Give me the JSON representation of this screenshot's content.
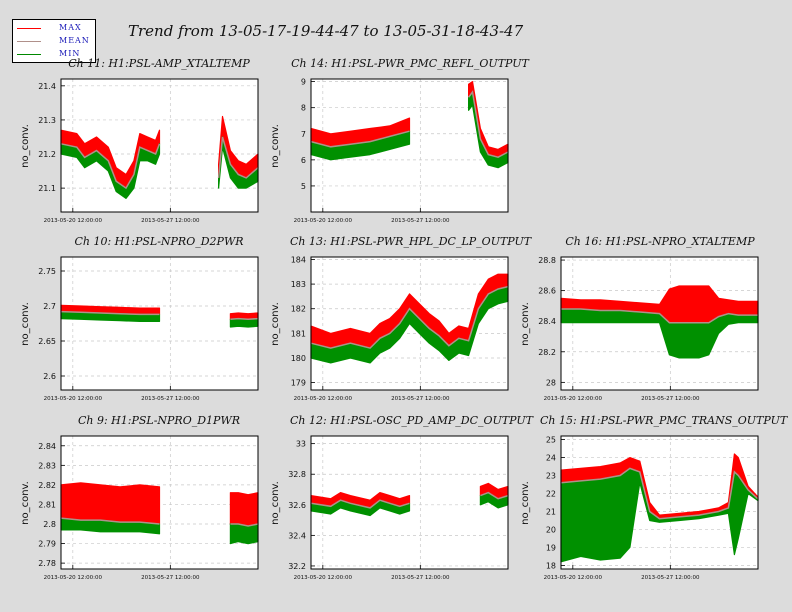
{
  "title": "Trend from 13-05-17-19-44-47 to 13-05-31-18-43-47",
  "legend": [
    {
      "label": "MAX",
      "color": "#ff0000"
    },
    {
      "label": "MEAN",
      "color": "#b0908a"
    },
    {
      "label": "MIN",
      "color": "#008800"
    }
  ],
  "x_ticks": [
    "2013-05-20 12:00:00",
    "2013-05-27 12:00:00"
  ],
  "chart_data": [
    {
      "type": "area",
      "title": "Ch 11: H1:PSL-AMP_XTALTEMP",
      "ylabel": "no_conv.",
      "yticks": [
        "21.1",
        "21.2",
        "21.3",
        "21.4"
      ],
      "ylim": [
        21.03,
        21.42
      ],
      "x": [
        0,
        0.08,
        0.12,
        0.18,
        0.24,
        0.28,
        0.33,
        0.37,
        0.4,
        0.44,
        0.48,
        0.5,
        0.51,
        0.52,
        0.8,
        0.82,
        0.86,
        0.9,
        0.94,
        1
      ],
      "max": [
        21.27,
        21.26,
        21.23,
        21.25,
        21.22,
        21.16,
        21.14,
        21.18,
        21.26,
        21.25,
        21.24,
        21.27,
        null,
        null,
        21.17,
        21.31,
        21.21,
        21.18,
        21.17,
        21.2
      ],
      "mean": [
        21.23,
        21.22,
        21.19,
        21.21,
        21.18,
        21.12,
        21.1,
        21.14,
        21.22,
        21.21,
        21.2,
        21.23,
        null,
        null,
        21.13,
        21.25,
        21.17,
        21.14,
        21.13,
        21.16
      ],
      "min": [
        21.2,
        21.19,
        21.16,
        21.18,
        21.15,
        21.09,
        21.07,
        21.1,
        21.18,
        21.18,
        21.17,
        21.2,
        null,
        null,
        21.1,
        21.22,
        21.13,
        21.1,
        21.1,
        21.12
      ]
    },
    {
      "type": "area",
      "title": "Ch 14: H1:PSL-PWR_PMC_REFL_OUTPUT",
      "ylabel": "no_conv.",
      "yticks": [
        "5",
        "6",
        "7",
        "8",
        "9"
      ],
      "ylim": [
        4.0,
        9.1
      ],
      "x": [
        0,
        0.1,
        0.2,
        0.3,
        0.4,
        0.5,
        0.52,
        0.53,
        0.8,
        0.82,
        0.86,
        0.9,
        0.95,
        1
      ],
      "max": [
        7.2,
        7.0,
        7.1,
        7.2,
        7.3,
        7.6,
        null,
        null,
        8.9,
        9.0,
        7.2,
        6.5,
        6.4,
        6.6
      ],
      "mean": [
        6.7,
        6.5,
        6.6,
        6.7,
        6.9,
        7.1,
        null,
        null,
        8.4,
        8.6,
        6.8,
        6.2,
        6.1,
        6.3
      ],
      "min": [
        6.2,
        6.0,
        6.1,
        6.2,
        6.4,
        6.6,
        null,
        null,
        7.9,
        8.1,
        6.3,
        5.8,
        5.7,
        5.9
      ]
    },
    {
      "type": "area",
      "title": "Ch 10: H1:PSL-NPRO_D2PWR",
      "ylabel": "no_conv.",
      "yticks": [
        "2.6",
        "2.65",
        "2.7",
        "2.75"
      ],
      "ylim": [
        2.58,
        2.77
      ],
      "x": [
        0,
        0.1,
        0.2,
        0.3,
        0.4,
        0.5,
        0.51,
        0.85,
        0.86,
        0.9,
        0.95,
        1
      ],
      "max": [
        2.701,
        2.7,
        2.699,
        2.698,
        2.697,
        2.697,
        null,
        null,
        2.689,
        2.69,
        2.689,
        2.69
      ],
      "mean": [
        2.692,
        2.691,
        2.69,
        2.689,
        2.688,
        2.688,
        null,
        null,
        2.681,
        2.682,
        2.681,
        2.682
      ],
      "min": [
        2.682,
        2.681,
        2.68,
        2.679,
        2.678,
        2.678,
        null,
        null,
        2.67,
        2.671,
        2.67,
        2.671
      ]
    },
    {
      "type": "area",
      "title": "Ch 13: H1:PSL-PWR_HPL_DC_LP_OUTPUT",
      "ylabel": "no_conv.",
      "yticks": [
        "179",
        "180",
        "181",
        "182",
        "183",
        "184"
      ],
      "ylim": [
        178.7,
        184.1
      ],
      "x": [
        0,
        0.1,
        0.2,
        0.3,
        0.35,
        0.4,
        0.45,
        0.5,
        0.55,
        0.6,
        0.65,
        0.7,
        0.75,
        0.8,
        0.85,
        0.9,
        0.95,
        1
      ],
      "max": [
        181.3,
        181.0,
        181.2,
        181.0,
        181.4,
        181.6,
        182.0,
        182.6,
        182.2,
        181.8,
        181.5,
        181.0,
        181.3,
        181.2,
        182.6,
        183.2,
        183.4,
        183.4
      ],
      "mean": [
        180.6,
        180.4,
        180.6,
        180.4,
        180.8,
        181.0,
        181.4,
        182.0,
        181.6,
        181.2,
        180.9,
        180.5,
        180.8,
        180.7,
        182.0,
        182.6,
        182.8,
        182.9
      ],
      "min": [
        180.0,
        179.8,
        180.0,
        179.8,
        180.2,
        180.4,
        180.8,
        181.4,
        181.0,
        180.6,
        180.3,
        179.9,
        180.2,
        180.1,
        181.4,
        182.0,
        182.2,
        182.3
      ]
    },
    {
      "type": "area",
      "title": "Ch 16: H1:PSL-NPRO_XTALTEMP",
      "ylabel": "no_conv.",
      "yticks": [
        "28",
        "28.2",
        "28.4",
        "28.6",
        "28.8"
      ],
      "ylim": [
        27.95,
        28.82
      ],
      "x": [
        0,
        0.1,
        0.2,
        0.3,
        0.4,
        0.5,
        0.55,
        0.6,
        0.7,
        0.75,
        0.8,
        0.85,
        0.9,
        1
      ],
      "max": [
        28.55,
        28.54,
        28.54,
        28.53,
        28.52,
        28.51,
        28.61,
        28.63,
        28.63,
        28.63,
        28.55,
        28.54,
        28.53,
        28.53
      ],
      "mean": [
        28.48,
        28.48,
        28.47,
        28.47,
        28.46,
        28.45,
        28.39,
        28.39,
        28.39,
        28.39,
        28.43,
        28.45,
        28.44,
        28.44
      ],
      "min": [
        28.39,
        28.39,
        28.39,
        28.39,
        28.39,
        28.39,
        28.18,
        28.16,
        28.16,
        28.18,
        28.32,
        28.38,
        28.39,
        28.39
      ]
    },
    {
      "type": "area",
      "title": "Ch 9: H1:PSL-NPRO_D1PWR",
      "ylabel": "no_conv.",
      "yticks": [
        "2.78",
        "2.79",
        "2.8",
        "2.81",
        "2.82",
        "2.83",
        "2.84"
      ],
      "ylim": [
        2.777,
        2.845
      ],
      "x": [
        0,
        0.1,
        0.2,
        0.3,
        0.4,
        0.5,
        0.51,
        0.85,
        0.86,
        0.9,
        0.95,
        1
      ],
      "max": [
        2.82,
        2.821,
        2.82,
        2.819,
        2.82,
        2.819,
        null,
        null,
        2.816,
        2.816,
        2.815,
        2.816
      ],
      "mean": [
        2.803,
        2.802,
        2.802,
        2.801,
        2.801,
        2.8,
        null,
        null,
        2.8,
        2.8,
        2.799,
        2.8
      ],
      "min": [
        2.797,
        2.797,
        2.796,
        2.796,
        2.796,
        2.795,
        null,
        null,
        2.79,
        2.791,
        2.79,
        2.791
      ]
    },
    {
      "type": "area",
      "title": "Ch 12: H1:PSL-OSC_PD_AMP_DC_OUTPUT",
      "ylabel": "no_conv.",
      "yticks": [
        "32.2",
        "32.4",
        "32.6",
        "32.8",
        "33"
      ],
      "ylim": [
        32.18,
        33.05
      ],
      "x": [
        0,
        0.1,
        0.15,
        0.2,
        0.3,
        0.35,
        0.4,
        0.45,
        0.5,
        0.51,
        0.85,
        0.86,
        0.9,
        0.95,
        1
      ],
      "max": [
        32.66,
        32.64,
        32.68,
        32.66,
        32.63,
        32.68,
        32.66,
        32.64,
        32.66,
        null,
        null,
        32.72,
        32.74,
        32.7,
        32.72
      ],
      "mean": [
        32.61,
        32.59,
        32.63,
        32.61,
        32.58,
        32.63,
        32.61,
        32.59,
        32.61,
        null,
        null,
        32.66,
        32.68,
        32.64,
        32.66
      ],
      "min": [
        32.56,
        32.54,
        32.58,
        32.56,
        32.53,
        32.58,
        32.56,
        32.54,
        32.56,
        null,
        null,
        32.6,
        32.62,
        32.58,
        32.6
      ]
    },
    {
      "type": "area",
      "title": "Ch 15: H1:PSL-PWR_PMC_TRANS_OUTPUT",
      "ylabel": "no_conv.",
      "yticks": [
        "18",
        "19",
        "20",
        "21",
        "22",
        "23",
        "24",
        "25"
      ],
      "ylim": [
        17.8,
        25.2
      ],
      "x": [
        0,
        0.1,
        0.2,
        0.3,
        0.35,
        0.4,
        0.45,
        0.5,
        0.6,
        0.7,
        0.8,
        0.85,
        0.88,
        0.9,
        0.95,
        1
      ],
      "max": [
        23.3,
        23.4,
        23.5,
        23.7,
        24.0,
        23.8,
        21.5,
        20.8,
        20.9,
        21.0,
        21.2,
        21.5,
        24.2,
        24.0,
        22.4,
        21.8
      ],
      "mean": [
        22.6,
        22.7,
        22.8,
        23.0,
        23.4,
        23.2,
        21.0,
        20.6,
        20.7,
        20.8,
        21.0,
        21.2,
        23.2,
        23.0,
        22.2,
        21.7
      ],
      "min": [
        18.2,
        18.5,
        18.3,
        18.4,
        19.0,
        22.6,
        20.5,
        20.4,
        20.5,
        20.6,
        20.8,
        20.9,
        18.6,
        19.5,
        22.0,
        21.6
      ]
    }
  ]
}
